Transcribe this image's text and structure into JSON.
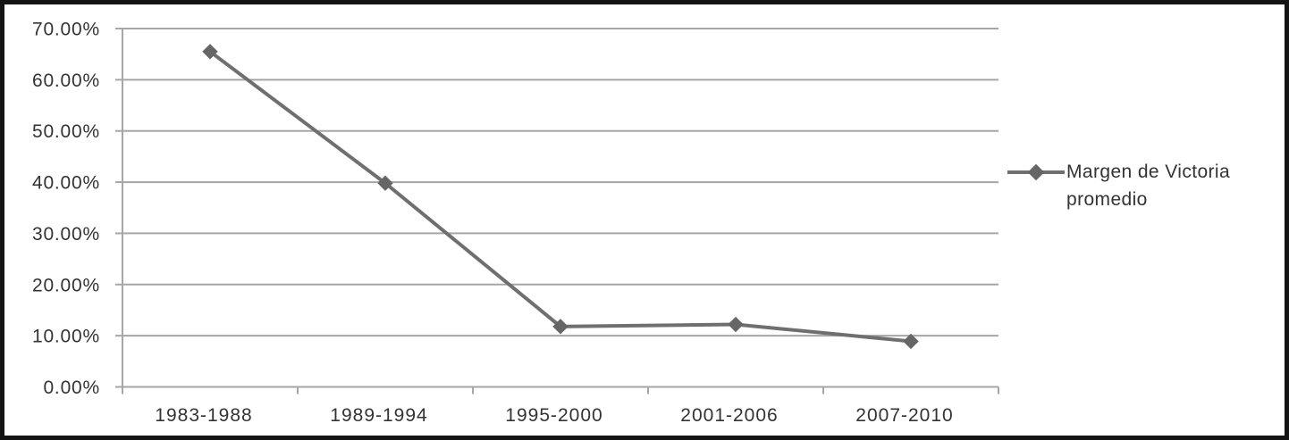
{
  "chart_data": {
    "type": "line",
    "title": "",
    "xlabel": "",
    "ylabel": "",
    "categories": [
      "1983-1988",
      "1989-1994",
      "1995-2000",
      "2001-2006",
      "2007-2010"
    ],
    "series": [
      {
        "name": "Margen de Victoria promedio",
        "values": [
          65.5,
          39.8,
          11.8,
          12.2,
          8.9
        ],
        "unit": "percent"
      }
    ],
    "ylim": [
      0,
      70
    ],
    "ytick_step": 10,
    "ytick_labels": [
      "0.00%",
      "10.00%",
      "20.00%",
      "30.00%",
      "40.00%",
      "50.00%",
      "60.00%",
      "70.00%"
    ],
    "grid": true,
    "marker": "diamond",
    "legend_position": "right",
    "colors": {
      "series_line": "#6f6f6f",
      "marker": "#666666",
      "gridline": "#a6a6a6",
      "axis": "#a6a6a6",
      "tick_text": "#333333",
      "legend_text": "#333333",
      "frame_border": "#141414",
      "background": "#ffffff"
    }
  }
}
